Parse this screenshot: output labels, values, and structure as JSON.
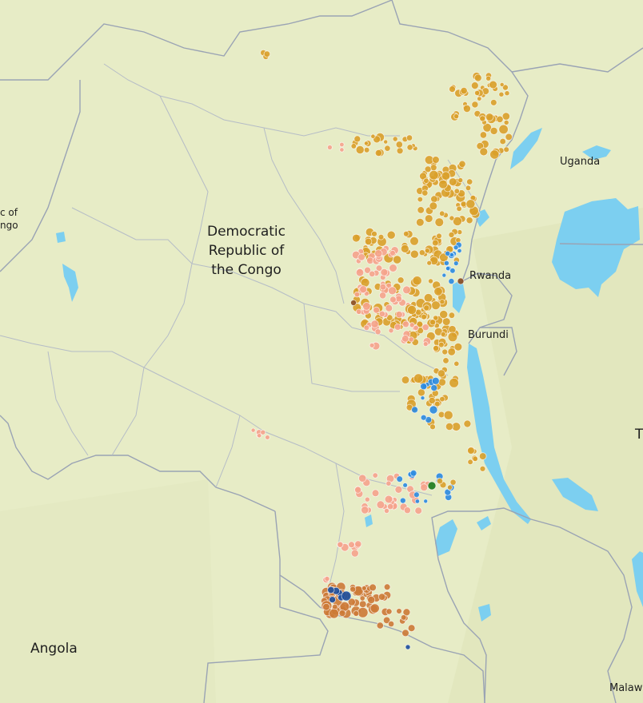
{
  "map": {
    "labels": {
      "drc": [
        "Democratic",
        "Republic of",
        "the Congo"
      ],
      "uganda": "Uganda",
      "rwanda": "Rwanda",
      "burundi": "Burundi",
      "angola": "Angola",
      "malawi": "Malaw",
      "tanzania_partial": "T",
      "roc_partial": [
        "c of",
        "ngo"
      ]
    },
    "colors": {
      "land": "#e7ecc6",
      "water": "#7ccff0",
      "border": "#9aa3b4",
      "province_border": "#b5bcc6",
      "gold": "#d9a02a",
      "pink": "#f5a38c",
      "blue": "#2a8ae0",
      "copper": "#cc7a36",
      "navy": "#1c4e9c",
      "brown": "#8a4a1e",
      "green": "#1a7a1a"
    }
  }
}
